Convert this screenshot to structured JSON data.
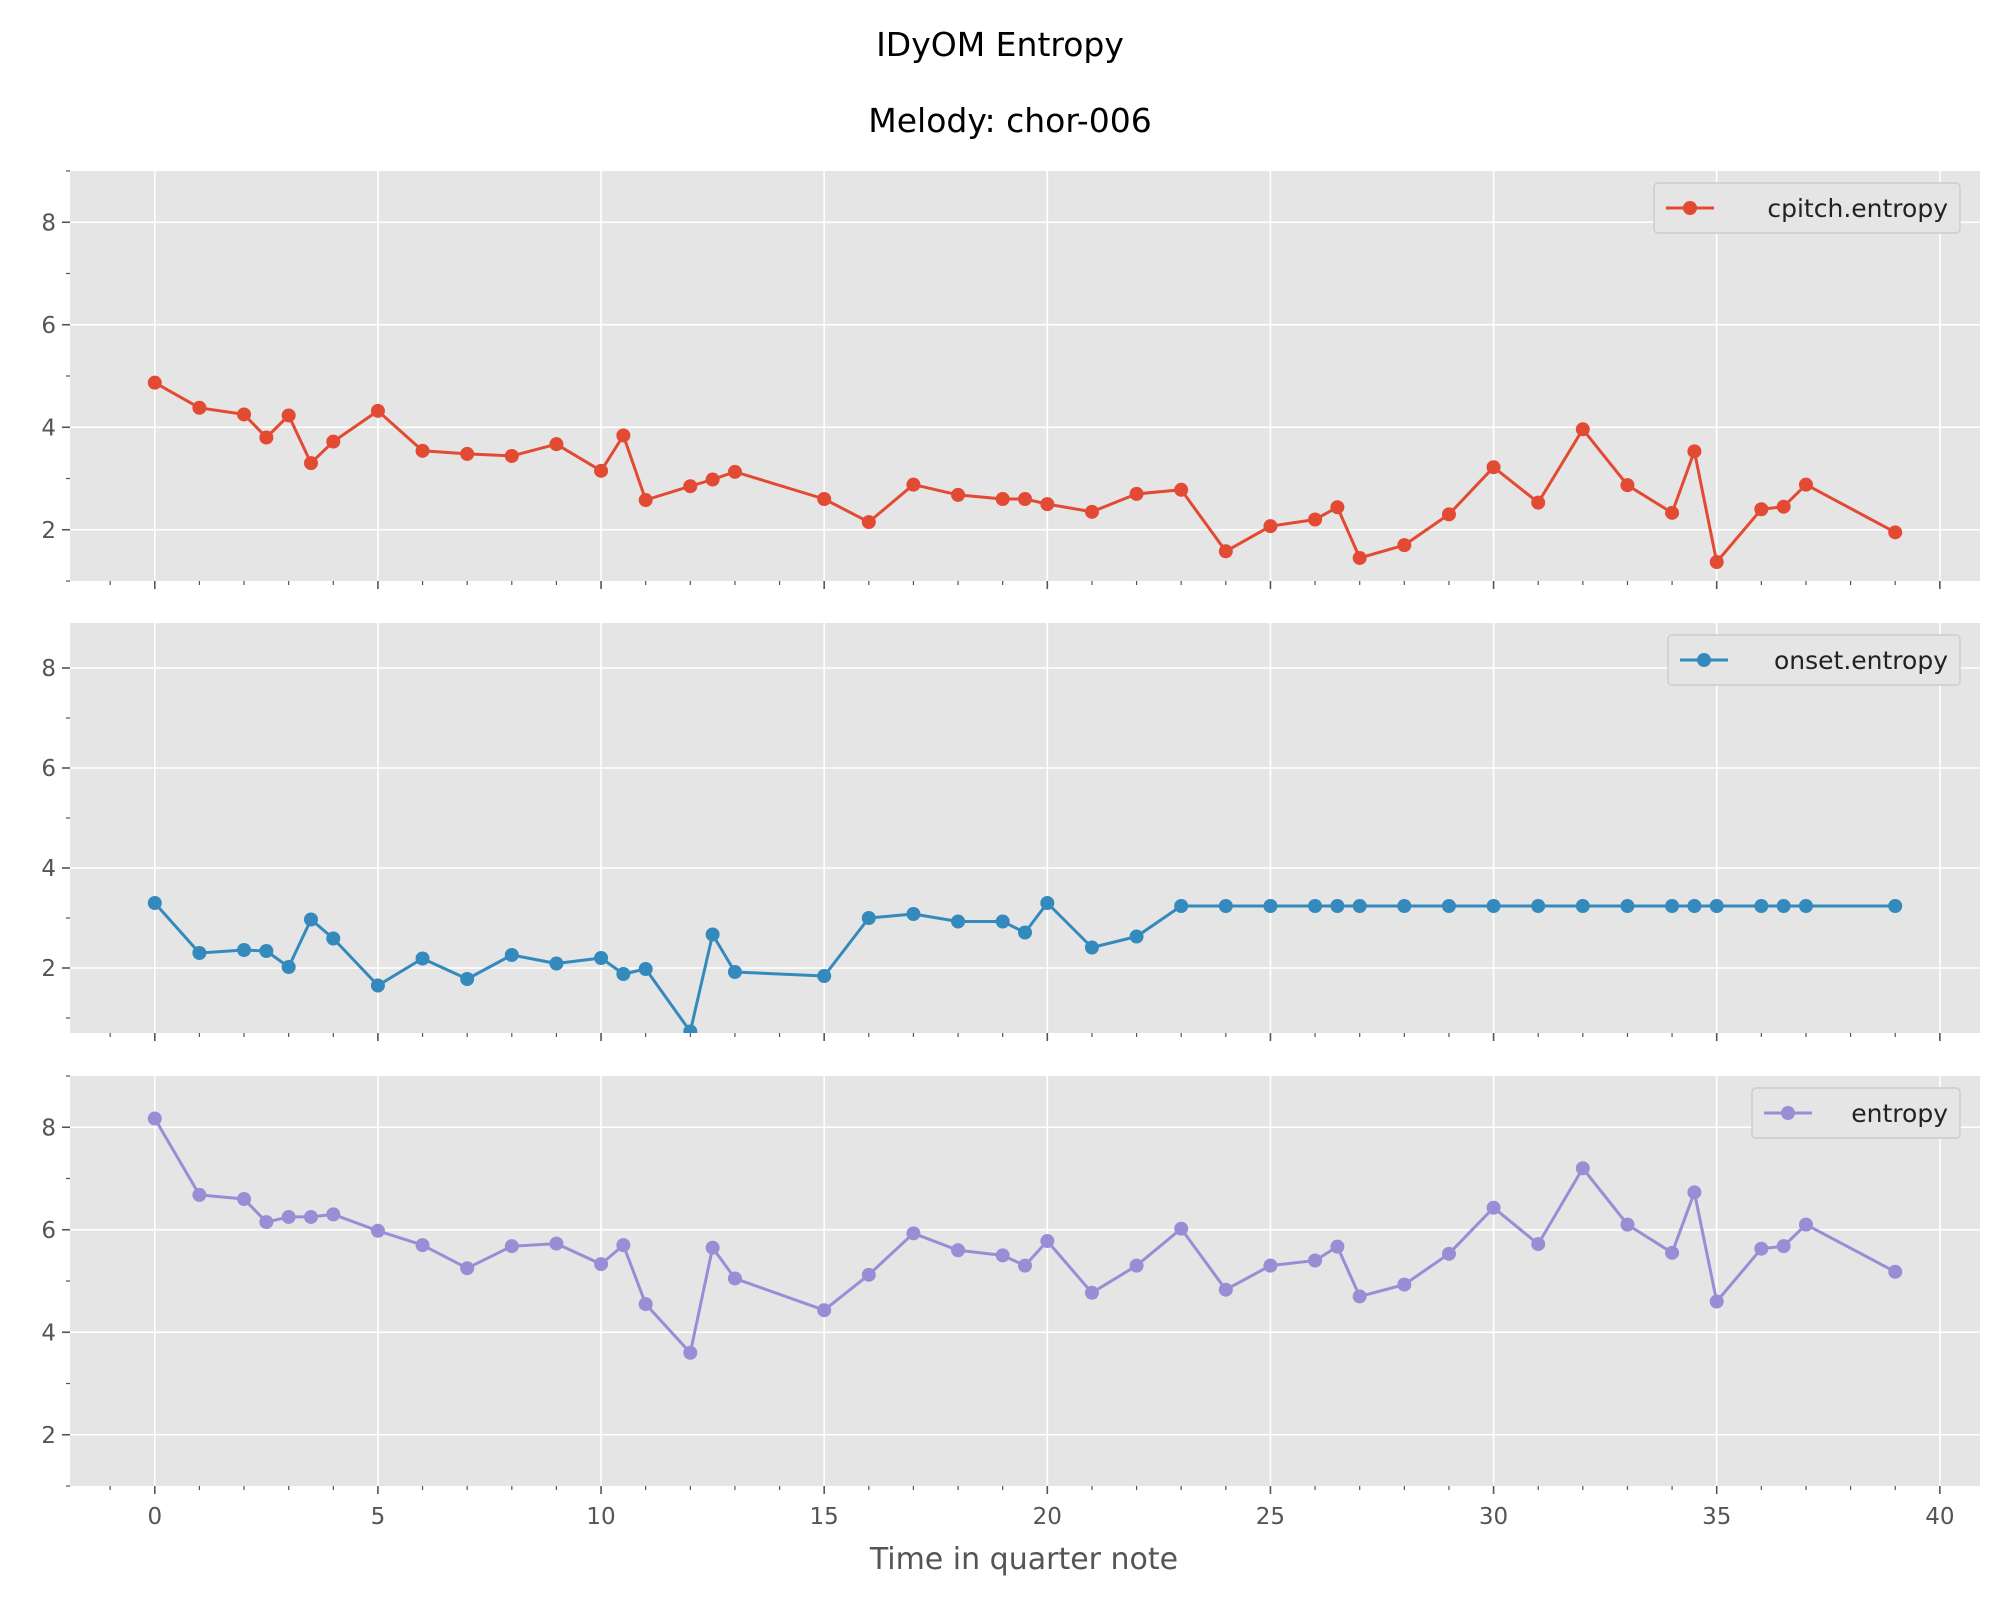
{
  "figure": {
    "title": "IDyOM Entropy",
    "subtitle": "Melody: chor-006"
  },
  "chart_data": {
    "type": "line",
    "xlabel": "Time in quarter note",
    "xlim": [
      -1.9,
      40.9
    ],
    "xticks": [
      0,
      5,
      10,
      15,
      20,
      25,
      30,
      35,
      40
    ],
    "grid": true,
    "legend_placement": "top-right",
    "x": [
      0,
      1,
      2,
      2.5,
      3,
      3.5,
      4,
      5,
      6,
      7,
      8,
      9,
      10,
      10.5,
      11,
      12,
      12.5,
      13,
      15,
      16,
      17,
      18,
      19,
      19.5,
      20,
      21,
      22,
      23,
      24,
      25,
      26,
      26.5,
      27,
      28,
      29,
      30,
      31,
      32,
      33,
      34,
      34.5,
      35,
      36,
      36.5,
      37,
      39
    ],
    "panels": [
      {
        "ylim": [
          1.0,
          9.0
        ],
        "yticks": [
          2,
          4,
          6,
          8
        ],
        "series": [
          {
            "name": "cpitch.entropy",
            "color": "#e24a33",
            "values": [
              4.87,
              4.38,
              4.25,
              3.8,
              4.23,
              3.3,
              3.72,
              4.32,
              3.54,
              3.48,
              3.44,
              3.67,
              3.15,
              3.84,
              2.58,
              2.85,
              2.98,
              3.13,
              2.6,
              2.15,
              2.88,
              2.68,
              2.6,
              2.6,
              2.5,
              2.35,
              2.7,
              2.78,
              1.58,
              2.07,
              2.2,
              2.44,
              1.45,
              1.7,
              2.3,
              3.22,
              2.53,
              3.96,
              2.87,
              2.33,
              3.53,
              1.37,
              2.4,
              2.45,
              2.88,
              1.95
            ]
          }
        ]
      },
      {
        "ylim": [
          0.7,
          8.9
        ],
        "yticks": [
          2,
          4,
          6,
          8
        ],
        "series": [
          {
            "name": "onset.entropy",
            "color": "#348abd",
            "values": [
              3.3,
              2.3,
              2.36,
              2.34,
              2.02,
              2.97,
              2.59,
              1.65,
              2.19,
              1.78,
              2.26,
              2.09,
              2.2,
              1.88,
              1.98,
              0.73,
              2.67,
              1.92,
              1.84,
              3.0,
              3.08,
              2.93,
              2.93,
              2.71,
              3.3,
              2.41,
              2.63,
              3.24,
              3.24,
              3.24,
              3.24,
              3.24,
              3.24,
              3.24,
              3.24,
              3.24,
              3.24,
              3.24,
              3.24,
              3.24,
              3.24,
              3.24,
              3.24,
              3.24,
              3.24,
              3.24
            ]
          }
        ]
      },
      {
        "ylim": [
          1.0,
          9.0
        ],
        "yticks": [
          2,
          4,
          6,
          8
        ],
        "series": [
          {
            "name": "entropy",
            "color": "#988ed5",
            "values": [
              8.17,
              6.68,
              6.6,
              6.15,
              6.25,
              6.25,
              6.3,
              5.98,
              5.7,
              5.25,
              5.68,
              5.73,
              5.33,
              5.7,
              4.55,
              3.6,
              5.65,
              5.05,
              4.43,
              5.12,
              5.93,
              5.6,
              5.5,
              5.3,
              5.78,
              4.77,
              5.3,
              6.02,
              4.83,
              5.3,
              5.4,
              5.67,
              4.7,
              4.93,
              5.53,
              6.43,
              5.72,
              7.2,
              6.1,
              5.55,
              6.73,
              4.6,
              5.63,
              5.68,
              6.1,
              5.18
            ]
          }
        ]
      }
    ]
  }
}
